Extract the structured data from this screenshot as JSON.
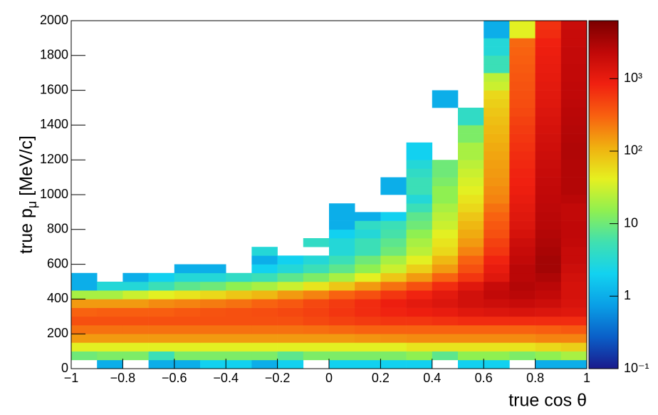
{
  "chart_data": {
    "type": "heatmap",
    "xlabel": "true cos θ",
    "ylabel": [
      "true p",
      "μ",
      " [MeV/c]"
    ],
    "xlim": [
      -1,
      1
    ],
    "ylim": [
      0,
      2000
    ],
    "zlim": [
      0.1,
      6300
    ],
    "zscale": "log",
    "xticks": [
      {
        "value": -1,
        "label": "−1"
      },
      {
        "value": -0.8,
        "label": "−0.8"
      },
      {
        "value": -0.6,
        "label": "−0.6"
      },
      {
        "value": -0.4,
        "label": "−0.4"
      },
      {
        "value": -0.2,
        "label": "−0.2"
      },
      0,
      0.2,
      0.4,
      0.6,
      0.8,
      1
    ],
    "yticks": [
      0,
      200,
      400,
      600,
      800,
      1000,
      1200,
      1400,
      1600,
      1800,
      2000
    ],
    "zticks": [
      {
        "value": 0.1,
        "label": "10⁻¹"
      },
      1,
      10,
      {
        "value": 100,
        "label": "10²"
      },
      {
        "value": 1000,
        "label": "10³"
      }
    ],
    "colormap": [
      "#1a1a8c",
      "#0a5fc8",
      "#0a9fe6",
      "#12d2f0",
      "#40e0b0",
      "#90f050",
      "#e6f020",
      "#f0b010",
      "#f86010",
      "#f02010",
      "#c00808",
      "#7a0000"
    ],
    "xbins": [
      -1,
      -0.9,
      -0.8,
      -0.7,
      -0.6,
      -0.5,
      -0.4,
      -0.3,
      -0.2,
      -0.1,
      0,
      0.1,
      0.2,
      0.3,
      0.4,
      0.5,
      0.6,
      0.7,
      0.8,
      0.9,
      1
    ],
    "ybins": [
      0,
      50,
      100,
      150,
      200,
      250,
      300,
      350,
      400,
      450,
      500,
      550,
      600,
      650,
      700,
      750,
      800,
      850,
      900,
      950,
      1000,
      1050,
      1100,
      1150,
      1200,
      1250,
      1300,
      1350,
      1400,
      1450,
      1500,
      1550,
      1600,
      1650,
      1700,
      1750,
      1800,
      1850,
      1900,
      1950,
      2000
    ],
    "z": [
      [
        null,
        1,
        null,
        1,
        1,
        2,
        2,
        1,
        2,
        null,
        2,
        2,
        2,
        2,
        null,
        2,
        2,
        null,
        1,
        1
      ],
      [
        10,
        12,
        12,
        5,
        12,
        12,
        12,
        12,
        8,
        12,
        12,
        12,
        12,
        15,
        8,
        15,
        15,
        12,
        15,
        20
      ],
      [
        40,
        40,
        40,
        40,
        40,
        40,
        40,
        40,
        40,
        40,
        40,
        40,
        40,
        50,
        50,
        50,
        50,
        50,
        60,
        70
      ],
      [
        150,
        150,
        150,
        150,
        150,
        150,
        150,
        150,
        150,
        150,
        150,
        160,
        170,
        180,
        180,
        180,
        180,
        180,
        200,
        200
      ],
      [
        250,
        250,
        250,
        250,
        250,
        250,
        250,
        250,
        250,
        260,
        280,
        300,
        300,
        300,
        300,
        300,
        300,
        300,
        320,
        350
      ],
      [
        400,
        400,
        400,
        400,
        400,
        400,
        400,
        400,
        400,
        450,
        500,
        550,
        600,
        600,
        650,
        700,
        700,
        700,
        700,
        700
      ],
      [
        300,
        320,
        320,
        320,
        350,
        380,
        400,
        420,
        450,
        500,
        600,
        700,
        800,
        900,
        1000,
        1200,
        1300,
        1400,
        1300,
        1200
      ],
      [
        150,
        150,
        150,
        180,
        200,
        220,
        250,
        300,
        350,
        450,
        550,
        700,
        900,
        1100,
        1300,
        1600,
        1800,
        2000,
        1800,
        1400
      ],
      [
        20,
        20,
        30,
        40,
        50,
        60,
        80,
        100,
        150,
        200,
        300,
        400,
        600,
        800,
        1100,
        1600,
        2200,
        2500,
        2200,
        1500
      ],
      [
        1,
        3,
        3,
        5,
        8,
        10,
        15,
        20,
        30,
        50,
        80,
        150,
        250,
        400,
        700,
        1200,
        2000,
        2800,
        2500,
        1500
      ],
      [
        1,
        null,
        1,
        2,
        3,
        3,
        4,
        5,
        8,
        12,
        20,
        40,
        80,
        150,
        300,
        600,
        1200,
        2500,
        3000,
        1600
      ],
      [
        null,
        null,
        null,
        null,
        1,
        1,
        null,
        2,
        3,
        5,
        8,
        15,
        30,
        70,
        150,
        400,
        1000,
        2500,
        3500,
        1800
      ],
      [
        null,
        null,
        null,
        null,
        null,
        null,
        null,
        1,
        2,
        3,
        5,
        10,
        20,
        40,
        100,
        300,
        800,
        2200,
        3500,
        2000
      ],
      [
        null,
        null,
        null,
        null,
        null,
        null,
        null,
        3,
        null,
        null,
        3,
        5,
        10,
        25,
        60,
        200,
        600,
        2000,
        3200,
        2000
      ],
      [
        null,
        null,
        null,
        null,
        null,
        null,
        null,
        null,
        null,
        4,
        3,
        5,
        8,
        20,
        50,
        150,
        500,
        1800,
        3000,
        2200
      ],
      [
        null,
        null,
        null,
        null,
        null,
        null,
        null,
        null,
        null,
        null,
        2,
        3,
        6,
        15,
        40,
        120,
        400,
        1500,
        2800,
        2300
      ],
      [
        null,
        null,
        null,
        null,
        null,
        null,
        null,
        null,
        null,
        null,
        1,
        4,
        5,
        10,
        30,
        100,
        350,
        1300,
        2600,
        2300
      ],
      [
        null,
        null,
        null,
        null,
        null,
        null,
        null,
        null,
        null,
        null,
        1,
        1,
        2,
        8,
        25,
        80,
        300,
        1200,
        2500,
        2200
      ],
      [
        null,
        null,
        null,
        null,
        null,
        null,
        null,
        null,
        null,
        null,
        1,
        null,
        null,
        5,
        20,
        60,
        250,
        1100,
        2400,
        2200
      ],
      [
        null,
        null,
        null,
        null,
        null,
        null,
        null,
        null,
        null,
        null,
        null,
        null,
        null,
        3,
        15,
        50,
        200,
        1000,
        2300,
        2500
      ],
      [
        null,
        null,
        null,
        null,
        null,
        null,
        null,
        null,
        null,
        null,
        null,
        null,
        1,
        5,
        15,
        40,
        180,
        900,
        2200,
        2800
      ],
      [
        null,
        null,
        null,
        null,
        null,
        null,
        null,
        null,
        null,
        null,
        null,
        null,
        1,
        5,
        12,
        35,
        160,
        850,
        2100,
        2800
      ],
      [
        null,
        null,
        null,
        null,
        null,
        null,
        null,
        null,
        null,
        null,
        null,
        null,
        null,
        4,
        10,
        30,
        150,
        800,
        2000,
        2800
      ],
      [
        null,
        null,
        null,
        null,
        null,
        null,
        null,
        null,
        null,
        null,
        null,
        null,
        null,
        3,
        10,
        25,
        140,
        750,
        1900,
        2800
      ],
      [
        null,
        null,
        null,
        null,
        null,
        null,
        null,
        null,
        null,
        null,
        null,
        null,
        null,
        2,
        null,
        20,
        130,
        700,
        1800,
        2900
      ],
      [
        null,
        null,
        null,
        null,
        null,
        null,
        null,
        null,
        null,
        null,
        null,
        null,
        null,
        2,
        null,
        20,
        120,
        650,
        1700,
        2900
      ],
      [
        null,
        null,
        null,
        null,
        null,
        null,
        null,
        null,
        null,
        null,
        null,
        null,
        null,
        null,
        null,
        12,
        110,
        600,
        1600,
        2800
      ],
      [
        null,
        null,
        null,
        null,
        null,
        null,
        null,
        null,
        null,
        null,
        null,
        null,
        null,
        null,
        null,
        12,
        100,
        550,
        1500,
        2700
      ],
      [
        null,
        null,
        null,
        null,
        null,
        null,
        null,
        null,
        null,
        null,
        null,
        null,
        null,
        null,
        null,
        4,
        90,
        500,
        1400,
        2600
      ],
      [
        null,
        null,
        null,
        null,
        null,
        null,
        null,
        null,
        null,
        null,
        null,
        null,
        null,
        null,
        null,
        4,
        80,
        450,
        1300,
        2500
      ],
      [
        null,
        null,
        null,
        null,
        null,
        null,
        null,
        null,
        null,
        null,
        null,
        null,
        null,
        null,
        1,
        null,
        70,
        420,
        1200,
        2400
      ],
      [
        null,
        null,
        null,
        null,
        null,
        null,
        null,
        null,
        null,
        null,
        null,
        null,
        null,
        null,
        1,
        null,
        60,
        400,
        1150,
        2300
      ],
      [
        null,
        null,
        null,
        null,
        null,
        null,
        null,
        null,
        null,
        null,
        null,
        null,
        null,
        null,
        null,
        null,
        30,
        380,
        1100,
        2300
      ],
      [
        null,
        null,
        null,
        null,
        null,
        null,
        null,
        null,
        null,
        null,
        null,
        null,
        null,
        null,
        null,
        null,
        25,
        360,
        1050,
        2200
      ],
      [
        null,
        null,
        null,
        null,
        null,
        null,
        null,
        null,
        null,
        null,
        null,
        null,
        null,
        null,
        null,
        null,
        5,
        340,
        1000,
        2200
      ],
      [
        null,
        null,
        null,
        null,
        null,
        null,
        null,
        null,
        null,
        null,
        null,
        null,
        null,
        null,
        null,
        null,
        5,
        320,
        950,
        2100
      ],
      [
        null,
        null,
        null,
        null,
        null,
        null,
        null,
        null,
        null,
        null,
        null,
        null,
        null,
        null,
        null,
        null,
        3,
        300,
        900,
        2100
      ],
      [
        null,
        null,
        null,
        null,
        null,
        null,
        null,
        null,
        null,
        null,
        null,
        null,
        null,
        null,
        null,
        null,
        3,
        280,
        850,
        2000
      ],
      [
        null,
        null,
        null,
        null,
        null,
        null,
        null,
        null,
        null,
        null,
        null,
        null,
        null,
        null,
        null,
        null,
        1,
        40,
        700,
        2000
      ],
      [
        null,
        null,
        null,
        null,
        null,
        null,
        null,
        null,
        null,
        null,
        null,
        null,
        null,
        null,
        null,
        null,
        1,
        40,
        650,
        1900
      ]
    ]
  }
}
